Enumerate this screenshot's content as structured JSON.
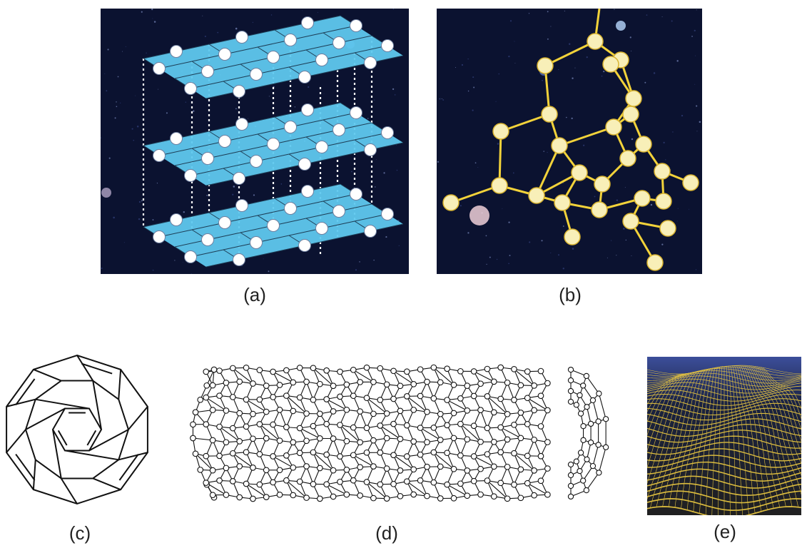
{
  "figure": {
    "panels": [
      {
        "id": "a",
        "label": "(a)",
        "depicts": "graphite-layers-icon"
      },
      {
        "id": "b",
        "label": "(b)",
        "depicts": "diamond-lattice-icon"
      },
      {
        "id": "c",
        "label": "(c)",
        "depicts": "fullerene-c60-icon"
      },
      {
        "id": "d",
        "label": "(d)",
        "depicts": "carbon-nanotube-icon"
      },
      {
        "id": "e",
        "label": "(e)",
        "depicts": "graphene-sheet-icon"
      }
    ],
    "colors": {
      "space_bg": "#0b1230",
      "graphite_plane": "#5fc8ee",
      "atom_white": "#ffffff",
      "diamond_bond": "#f2d23a",
      "diamond_atom": "#f8efb8",
      "graphene_mesh": "#e8c640",
      "graphene_sky": "#3c4e9a",
      "line_dark": "#111111"
    }
  }
}
